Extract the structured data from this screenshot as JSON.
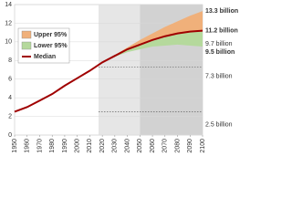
{
  "chart_data": {
    "type": "line",
    "x": [
      1950,
      1960,
      1970,
      1980,
      1990,
      2000,
      2010,
      2020,
      2030,
      2040,
      2050,
      2060,
      2070,
      2080,
      2090,
      2100
    ],
    "series": [
      {
        "name": "Upper 95%",
        "color": "#f0b07a",
        "values": [
          null,
          null,
          null,
          null,
          null,
          null,
          null,
          7.8,
          8.6,
          9.4,
          10.2,
          10.9,
          11.6,
          12.2,
          12.8,
          13.3
        ]
      },
      {
        "name": "Lower 95%",
        "color": "#b5d99c",
        "values": [
          null,
          null,
          null,
          null,
          null,
          null,
          null,
          7.8,
          8.4,
          8.9,
          9.2,
          9.5,
          9.6,
          9.7,
          9.6,
          9.5
        ]
      },
      {
        "name": "Median",
        "color": "#a00000",
        "values": [
          2.5,
          3.0,
          3.7,
          4.4,
          5.3,
          6.1,
          6.9,
          7.8,
          8.5,
          9.2,
          9.7,
          10.2,
          10.6,
          10.9,
          11.1,
          11.2
        ]
      }
    ],
    "xlim": [
      1950,
      2100
    ],
    "xticks": [
      1950,
      1960,
      1970,
      1980,
      1990,
      2000,
      2010,
      2020,
      2030,
      2040,
      2050,
      2060,
      2070,
      2080,
      2090,
      2100
    ],
    "ylim": [
      0,
      14
    ],
    "yticks": [
      0,
      2,
      4,
      6,
      8,
      10,
      12,
      14
    ],
    "grid": true,
    "shaded_regions": [
      {
        "from": 2017,
        "to": 2050,
        "color": "#e6e6e6"
      },
      {
        "from": 2050,
        "to": 2100,
        "color": "#d2d2d2"
      }
    ],
    "reference_lines": [
      7.3,
      2.5
    ],
    "annotations": [
      {
        "value": 13.3,
        "label": "13.3 billion",
        "color": "#f0a040"
      },
      {
        "value": 11.2,
        "label": "11.2 billion",
        "color": "#a00000"
      },
      {
        "value": 9.7,
        "label": "9.7 billion",
        "color": "#555555"
      },
      {
        "value": 9.5,
        "label": "9.5 billion",
        "color": "#6aaa2a"
      },
      {
        "value": 7.3,
        "label": "7.3 billion",
        "color": "#555555"
      },
      {
        "value": 2.5,
        "label": "2.5 billion",
        "color": "#555555"
      }
    ]
  }
}
